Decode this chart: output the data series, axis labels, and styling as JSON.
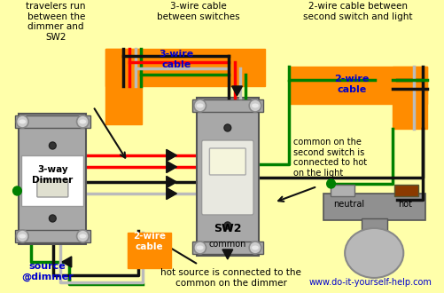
{
  "bg_color": "#FFFFAA",
  "orange": "#FF8C00",
  "red": "#FF0000",
  "black": "#111111",
  "green": "#008000",
  "gray": "#BBBBBB",
  "sgray": "#A8A8A8",
  "text_blue": "#0000CC",
  "label_travelers": "travelers run\nbetween the\ndimmer and\nSW2",
  "label_3way_top": "3-wire cable\nbetween switches",
  "label_3wire": "3-wire\ncable",
  "label_2way_top": "2-wire cable between\nsecond switch and light",
  "label_2wire": "2-wire\ncable",
  "label_dimmer": "3-way\nDimmer",
  "label_sw2": "SW2",
  "label_common": "common",
  "label_source": "source\n@dimmer",
  "label_2wire_bot": "2-wire\ncable",
  "label_hot_src": "hot source is connected to the\ncommon on the dimmer",
  "label_common_note": "common on the\nsecond switch is\nconnected to hot\non the light",
  "label_neutral": "neutral",
  "label_hot": "hot",
  "label_url": "www.do-it-yourself-help.com"
}
